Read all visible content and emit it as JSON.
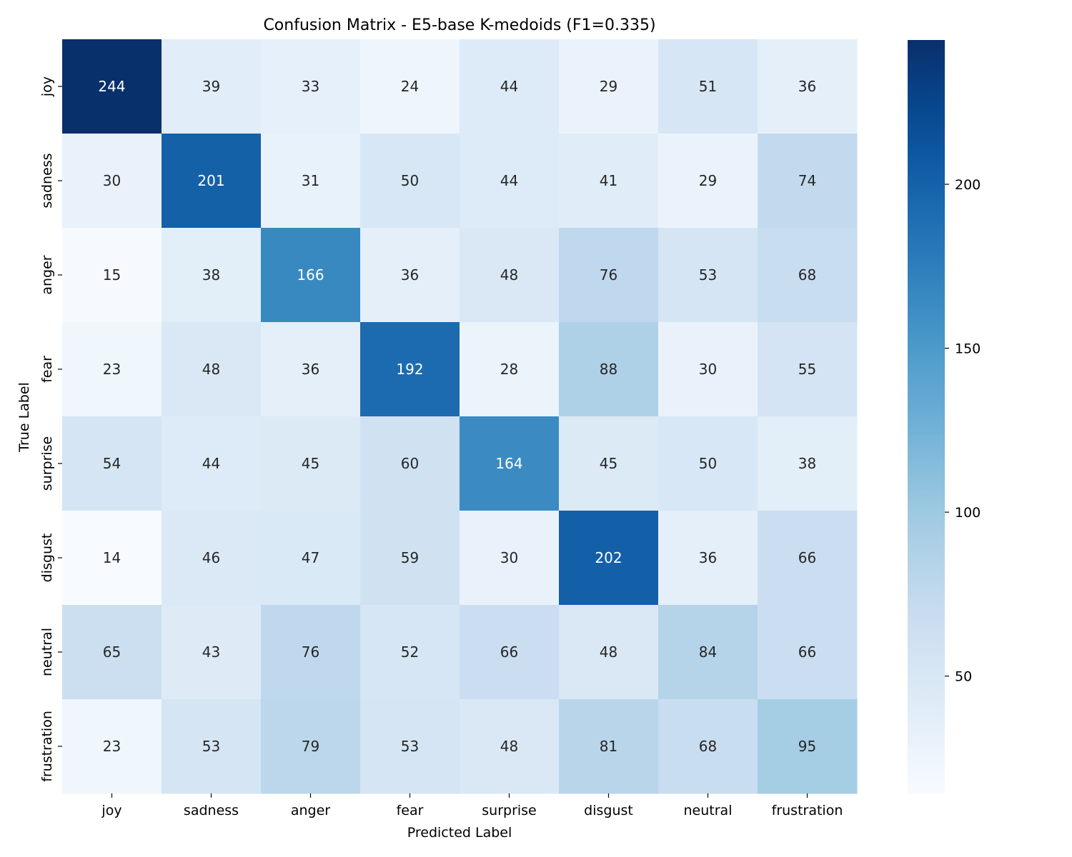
{
  "chart_data": {
    "type": "heatmap",
    "title": "Confusion Matrix - E5-base K-medoids (F1=0.335)",
    "xlabel": "Predicted Label",
    "ylabel": "True Label",
    "x_categories": [
      "joy",
      "sadness",
      "anger",
      "fear",
      "surprise",
      "disgust",
      "neutral",
      "frustration"
    ],
    "y_categories": [
      "joy",
      "sadness",
      "anger",
      "fear",
      "surprise",
      "disgust",
      "neutral",
      "frustration"
    ],
    "values": [
      [
        244,
        39,
        33,
        24,
        44,
        29,
        51,
        36
      ],
      [
        30,
        201,
        31,
        50,
        44,
        41,
        29,
        74
      ],
      [
        15,
        38,
        166,
        36,
        48,
        76,
        53,
        68
      ],
      [
        23,
        48,
        36,
        192,
        28,
        88,
        30,
        55
      ],
      [
        54,
        44,
        45,
        60,
        164,
        45,
        50,
        38
      ],
      [
        14,
        46,
        47,
        59,
        30,
        202,
        36,
        66
      ],
      [
        65,
        43,
        76,
        52,
        66,
        48,
        84,
        66
      ],
      [
        23,
        53,
        79,
        53,
        48,
        81,
        68,
        95
      ]
    ],
    "colormap": "Blues",
    "vmin": 14,
    "vmax": 244,
    "colorbar_ticks": [
      50,
      100,
      150,
      200
    ],
    "grid": false
  }
}
